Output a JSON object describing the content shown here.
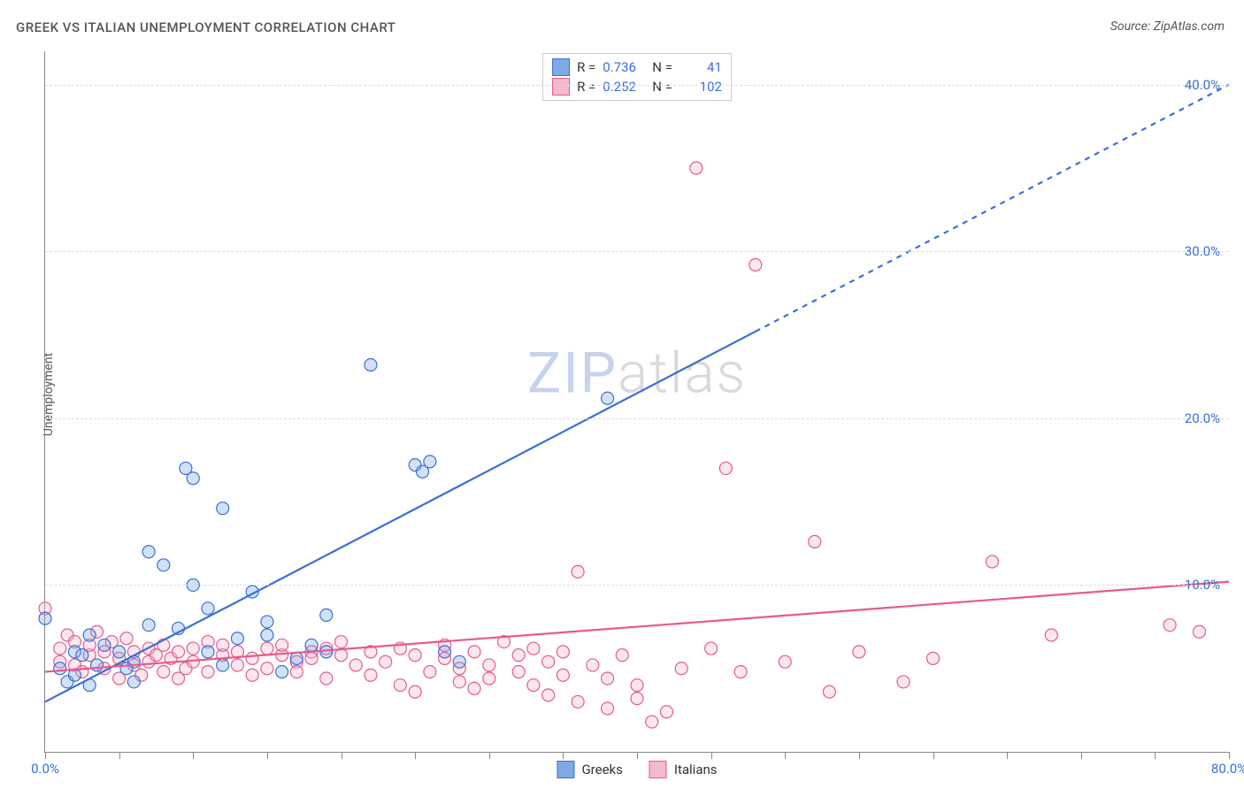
{
  "title": "GREEK VS ITALIAN UNEMPLOYMENT CORRELATION CHART",
  "source_label": "Source: ZipAtlas.com",
  "ylabel": "Unemployment",
  "watermark": {
    "part1": "ZIP",
    "part2": "atlas"
  },
  "chart": {
    "type": "scatter",
    "background_color": "#ffffff",
    "grid_color": "#dddddd",
    "axis_color": "#888888",
    "xlim": [
      0,
      80
    ],
    "ylim": [
      0,
      42
    ],
    "xtick_step": 5,
    "ytick_step": 10,
    "xtick_labels": {
      "0": "0.0%",
      "80": "80.0%"
    },
    "ytick_labels": {
      "10": "10.0%",
      "20": "20.0%",
      "30": "30.0%",
      "40": "40.0%"
    },
    "marker_radius": 7,
    "marker_stroke_width": 1.2,
    "marker_fill_opacity": 0.35,
    "line_width": 2.2,
    "tick_label_color": "#3a6fd8",
    "label_fontsize": 15
  },
  "series": {
    "greeks": {
      "label": "Greeks",
      "color_fill": "#7ea9e3",
      "color_stroke": "#3a6fd8",
      "R": "0.736",
      "N": "41",
      "trend": {
        "x1": 0,
        "y1": 3.0,
        "x_solid_end": 48,
        "y_solid_end": 25.2,
        "x2": 80,
        "y2": 40.0,
        "dashed_from_x": 48
      },
      "points": [
        [
          0,
          8.0
        ],
        [
          1,
          5.0
        ],
        [
          1.5,
          4.2
        ],
        [
          2,
          6.0
        ],
        [
          2,
          4.6
        ],
        [
          2.5,
          5.8
        ],
        [
          3,
          4.0
        ],
        [
          3,
          7.0
        ],
        [
          3.5,
          5.2
        ],
        [
          4,
          6.4
        ],
        [
          5,
          6.0
        ],
        [
          5.5,
          5.0
        ],
        [
          6,
          5.4
        ],
        [
          6,
          4.2
        ],
        [
          7,
          7.6
        ],
        [
          7,
          12.0
        ],
        [
          8,
          11.2
        ],
        [
          9,
          7.4
        ],
        [
          9.5,
          17.0
        ],
        [
          10,
          16.4
        ],
        [
          10,
          10.0
        ],
        [
          11,
          8.6
        ],
        [
          11,
          6.0
        ],
        [
          12,
          5.2
        ],
        [
          12,
          14.6
        ],
        [
          13,
          6.8
        ],
        [
          14,
          9.6
        ],
        [
          15,
          7.0
        ],
        [
          15,
          7.8
        ],
        [
          16,
          4.8
        ],
        [
          17,
          5.6
        ],
        [
          18,
          6.4
        ],
        [
          19,
          8.2
        ],
        [
          19,
          6.0
        ],
        [
          22,
          23.2
        ],
        [
          25,
          17.2
        ],
        [
          25.5,
          16.8
        ],
        [
          26,
          17.4
        ],
        [
          27,
          6.0
        ],
        [
          28,
          5.4
        ],
        [
          38,
          21.2
        ]
      ]
    },
    "italians": {
      "label": "Italians",
      "color_fill": "#f4b9cb",
      "color_stroke": "#e75a8d",
      "R": "0.252",
      "N": "102",
      "trend": {
        "x1": 0,
        "y1": 4.8,
        "x2": 80,
        "y2": 10.2
      },
      "points": [
        [
          0,
          8.6
        ],
        [
          1,
          6.2
        ],
        [
          1,
          5.4
        ],
        [
          1.5,
          7.0
        ],
        [
          2,
          6.6
        ],
        [
          2,
          5.2
        ],
        [
          2.5,
          4.8
        ],
        [
          3,
          5.8
        ],
        [
          3,
          6.4
        ],
        [
          3.5,
          7.2
        ],
        [
          4,
          6.0
        ],
        [
          4,
          5.0
        ],
        [
          4.5,
          6.6
        ],
        [
          5,
          5.6
        ],
        [
          5,
          4.4
        ],
        [
          5.5,
          6.8
        ],
        [
          6,
          5.2
        ],
        [
          6,
          6.0
        ],
        [
          6.5,
          4.6
        ],
        [
          7,
          5.4
        ],
        [
          7,
          6.2
        ],
        [
          7.5,
          5.8
        ],
        [
          8,
          4.8
        ],
        [
          8,
          6.4
        ],
        [
          8.5,
          5.6
        ],
        [
          9,
          6.0
        ],
        [
          9,
          4.4
        ],
        [
          9.5,
          5.0
        ],
        [
          10,
          6.2
        ],
        [
          10,
          5.4
        ],
        [
          11,
          6.6
        ],
        [
          11,
          4.8
        ],
        [
          12,
          5.8
        ],
        [
          12,
          6.4
        ],
        [
          13,
          5.2
        ],
        [
          13,
          6.0
        ],
        [
          14,
          5.6
        ],
        [
          14,
          4.6
        ],
        [
          15,
          6.2
        ],
        [
          15,
          5.0
        ],
        [
          16,
          5.8
        ],
        [
          16,
          6.4
        ],
        [
          17,
          5.4
        ],
        [
          17,
          4.8
        ],
        [
          18,
          6.0
        ],
        [
          18,
          5.6
        ],
        [
          19,
          6.2
        ],
        [
          19,
          4.4
        ],
        [
          20,
          5.8
        ],
        [
          20,
          6.6
        ],
        [
          21,
          5.2
        ],
        [
          22,
          6.0
        ],
        [
          22,
          4.6
        ],
        [
          23,
          5.4
        ],
        [
          24,
          6.2
        ],
        [
          24,
          4.0
        ],
        [
          25,
          5.8
        ],
        [
          25,
          3.6
        ],
        [
          26,
          4.8
        ],
        [
          27,
          5.6
        ],
        [
          27,
          6.4
        ],
        [
          28,
          4.2
        ],
        [
          28,
          5.0
        ],
        [
          29,
          6.0
        ],
        [
          29,
          3.8
        ],
        [
          30,
          5.2
        ],
        [
          30,
          4.4
        ],
        [
          31,
          6.6
        ],
        [
          32,
          4.8
        ],
        [
          32,
          5.8
        ],
        [
          33,
          4.0
        ],
        [
          33,
          6.2
        ],
        [
          34,
          3.4
        ],
        [
          34,
          5.4
        ],
        [
          35,
          4.6
        ],
        [
          35,
          6.0
        ],
        [
          36,
          3.0
        ],
        [
          36,
          10.8
        ],
        [
          37,
          5.2
        ],
        [
          38,
          4.4
        ],
        [
          38,
          2.6
        ],
        [
          39,
          5.8
        ],
        [
          40,
          4.0
        ],
        [
          40,
          3.2
        ],
        [
          41,
          1.8
        ],
        [
          42,
          2.4
        ],
        [
          43,
          5.0
        ],
        [
          44,
          35.0
        ],
        [
          45,
          6.2
        ],
        [
          46,
          17.0
        ],
        [
          47,
          4.8
        ],
        [
          48,
          29.2
        ],
        [
          50,
          5.4
        ],
        [
          52,
          12.6
        ],
        [
          53,
          3.6
        ],
        [
          55,
          6.0
        ],
        [
          58,
          4.2
        ],
        [
          60,
          5.6
        ],
        [
          64,
          11.4
        ],
        [
          68,
          7.0
        ],
        [
          76,
          7.6
        ],
        [
          78,
          7.2
        ]
      ]
    }
  },
  "legend_bottom": [
    {
      "key": "greeks"
    },
    {
      "key": "italians"
    }
  ]
}
